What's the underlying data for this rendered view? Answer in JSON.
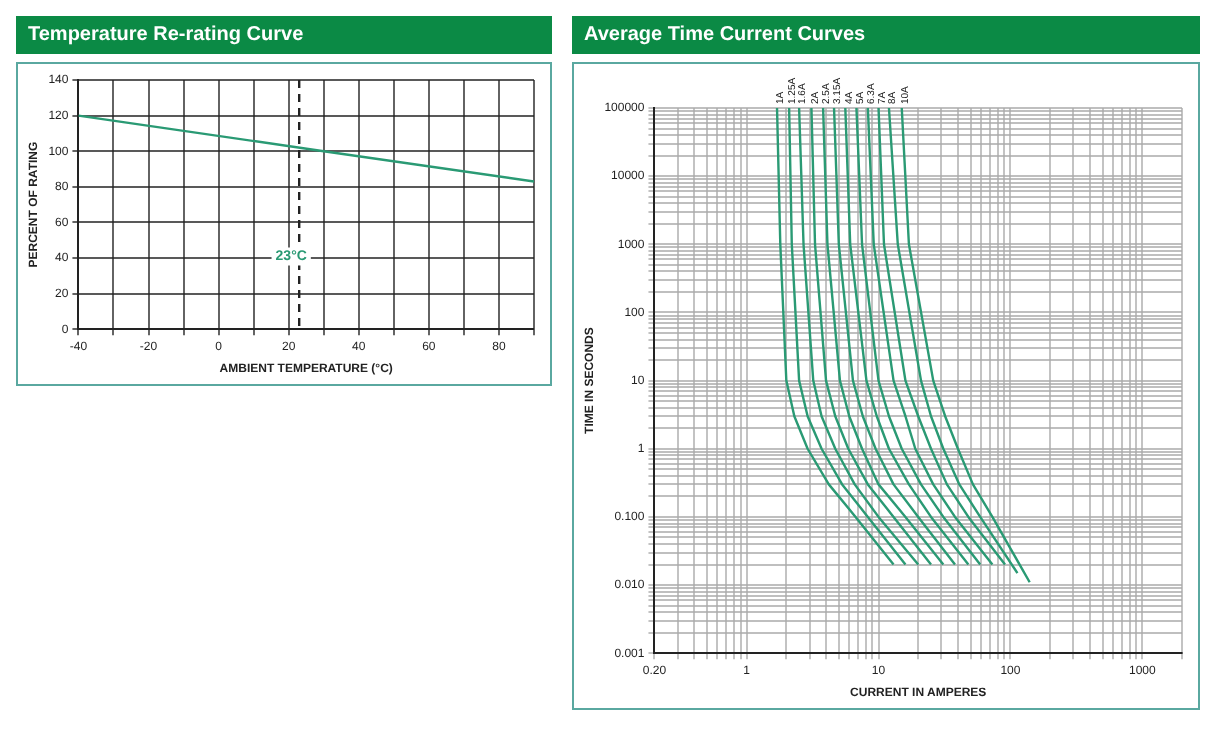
{
  "chart_data": [
    {
      "type": "line",
      "title": "Temperature Re-rating Curve",
      "xlabel": "AMBIENT TEMPERATURE (°C)",
      "ylabel": "PERCENT OF RATING",
      "x": [
        -40,
        30,
        90
      ],
      "values": [
        120,
        100,
        83
      ],
      "color": "#2a9a74",
      "marker": "none",
      "grid": true,
      "xlim": [
        -40,
        90
      ],
      "ylim": [
        0,
        140
      ],
      "xticks": [
        -40,
        {
          "value": -30,
          "label": null
        },
        -20,
        {
          "value": -10,
          "label": null
        },
        0,
        {
          "value": 10,
          "label": null
        },
        20,
        {
          "value": 30,
          "label": null
        },
        40,
        {
          "value": 50,
          "label": null
        },
        60,
        {
          "value": 70,
          "label": null
        },
        80,
        {
          "value": 90,
          "label": null
        }
      ],
      "yticks": [
        0,
        20,
        40,
        60,
        80,
        100,
        120,
        140
      ],
      "ref_lines": [
        {
          "axis": "x",
          "value": 23,
          "label": "23°C",
          "line_style": "dashed",
          "color": "#222222"
        }
      ]
    },
    {
      "type": "line",
      "title": "Average Time Current Curves",
      "xlabel": "CURRENT IN AMPERES",
      "ylabel": "TIME IN SECONDS",
      "log": "xy",
      "marker": "none",
      "grid": true,
      "xlim": [
        0.2,
        2000
      ],
      "ylim": [
        0.001,
        100000
      ],
      "xticks": [
        {
          "value": 0.2,
          "label": "0.20"
        },
        {
          "value": 0.3,
          "label": null
        },
        {
          "value": 0.4,
          "label": null
        },
        {
          "value": 0.5,
          "label": null
        },
        {
          "value": 0.6,
          "label": null
        },
        {
          "value": 0.7,
          "label": null
        },
        {
          "value": 0.8,
          "label": null
        },
        {
          "value": 0.9,
          "label": null
        },
        1,
        {
          "value": 2,
          "label": null
        },
        {
          "value": 3,
          "label": null
        },
        {
          "value": 4,
          "label": null
        },
        {
          "value": 5,
          "label": null
        },
        {
          "value": 6,
          "label": null
        },
        {
          "value": 7,
          "label": null
        },
        {
          "value": 8,
          "label": null
        },
        {
          "value": 9,
          "label": null
        },
        10,
        {
          "value": 20,
          "label": null
        },
        {
          "value": 30,
          "label": null
        },
        {
          "value": 40,
          "label": null
        },
        {
          "value": 50,
          "label": null
        },
        {
          "value": 60,
          "label": null
        },
        {
          "value": 70,
          "label": null
        },
        {
          "value": 80,
          "label": null
        },
        {
          "value": 90,
          "label": null
        },
        100,
        {
          "value": 200,
          "label": null
        },
        {
          "value": 300,
          "label": null
        },
        {
          "value": 400,
          "label": null
        },
        {
          "value": 500,
          "label": null
        },
        {
          "value": 600,
          "label": null
        },
        {
          "value": 700,
          "label": null
        },
        {
          "value": 800,
          "label": null
        },
        {
          "value": 900,
          "label": null
        },
        1000,
        {
          "value": 2000,
          "label": null
        }
      ],
      "yticks": [
        0.001,
        {
          "value": 0.002,
          "label": null
        },
        {
          "value": 0.003,
          "label": null
        },
        {
          "value": 0.004,
          "label": null
        },
        {
          "value": 0.005,
          "label": null
        },
        {
          "value": 0.006,
          "label": null
        },
        {
          "value": 0.007,
          "label": null
        },
        {
          "value": 0.008,
          "label": null
        },
        {
          "value": 0.009,
          "label": null
        },
        {
          "value": 0.01,
          "label": "0.010"
        },
        {
          "value": 0.02,
          "label": null
        },
        {
          "value": 0.03,
          "label": null
        },
        {
          "value": 0.04,
          "label": null
        },
        {
          "value": 0.05,
          "label": null
        },
        {
          "value": 0.06,
          "label": null
        },
        {
          "value": 0.07,
          "label": null
        },
        {
          "value": 0.08,
          "label": null
        },
        {
          "value": 0.09,
          "label": null
        },
        {
          "value": 0.1,
          "label": "0.100"
        },
        {
          "value": 0.2,
          "label": null
        },
        {
          "value": 0.3,
          "label": null
        },
        {
          "value": 0.4,
          "label": null
        },
        {
          "value": 0.5,
          "label": null
        },
        {
          "value": 0.6,
          "label": null
        },
        {
          "value": 0.7,
          "label": null
        },
        {
          "value": 0.8,
          "label": null
        },
        {
          "value": 0.9,
          "label": null
        },
        1,
        {
          "value": 2,
          "label": null
        },
        {
          "value": 3,
          "label": null
        },
        {
          "value": 4,
          "label": null
        },
        {
          "value": 5,
          "label": null
        },
        {
          "value": 6,
          "label": null
        },
        {
          "value": 7,
          "label": null
        },
        {
          "value": 8,
          "label": null
        },
        {
          "value": 9,
          "label": null
        },
        10,
        {
          "value": 20,
          "label": null
        },
        {
          "value": 30,
          "label": null
        },
        {
          "value": 40,
          "label": null
        },
        {
          "value": 50,
          "label": null
        },
        {
          "value": 60,
          "label": null
        },
        {
          "value": 70,
          "label": null
        },
        {
          "value": 80,
          "label": null
        },
        {
          "value": 90,
          "label": null
        },
        100,
        {
          "value": 200,
          "label": null
        },
        {
          "value": 300,
          "label": null
        },
        {
          "value": 400,
          "label": null
        },
        {
          "value": 500,
          "label": null
        },
        {
          "value": 600,
          "label": null
        },
        {
          "value": 700,
          "label": null
        },
        {
          "value": 800,
          "label": null
        },
        {
          "value": 900,
          "label": null
        },
        1000,
        {
          "value": 2000,
          "label": null
        },
        {
          "value": 3000,
          "label": null
        },
        {
          "value": 4000,
          "label": null
        },
        {
          "value": 5000,
          "label": null
        },
        {
          "value": 6000,
          "label": null
        },
        {
          "value": 7000,
          "label": null
        },
        {
          "value": 8000,
          "label": null
        },
        {
          "value": 9000,
          "label": null
        },
        10000,
        {
          "value": 20000,
          "label": null
        },
        {
          "value": 30000,
          "label": null
        },
        {
          "value": 40000,
          "label": null
        },
        {
          "value": 50000,
          "label": null
        },
        {
          "value": 60000,
          "label": null
        },
        {
          "value": 70000,
          "label": null
        },
        {
          "value": 80000,
          "label": null
        },
        {
          "value": 90000,
          "label": null
        },
        100000
      ],
      "series": [
        {
          "name": "1A",
          "color": "#2a9a74",
          "x": [
            1.7,
            1.8,
            2.0,
            2.3,
            2.9,
            4.2,
            6.7,
            13
          ],
          "values": [
            100000,
            1000,
            10,
            3,
            1,
            0.3,
            0.1,
            0.02
          ]
        },
        {
          "name": "1.25A",
          "color": "#2a9a74",
          "x": [
            2.1,
            2.2,
            2.5,
            2.9,
            3.7,
            5.3,
            8.3,
            16
          ],
          "values": [
            100000,
            1000,
            10,
            3,
            1,
            0.3,
            0.1,
            0.02
          ]
        },
        {
          "name": "1.6A",
          "color": "#2a9a74",
          "x": [
            2.5,
            2.7,
            3.2,
            3.7,
            4.7,
            6.6,
            10,
            20
          ],
          "values": [
            100000,
            1000,
            10,
            3,
            1,
            0.3,
            0.1,
            0.02
          ]
        },
        {
          "name": "2A",
          "color": "#2a9a74",
          "x": [
            3.1,
            3.3,
            4.0,
            4.7,
            5.9,
            8.3,
            13,
            25
          ],
          "values": [
            100000,
            1000,
            10,
            3,
            1,
            0.3,
            0.1,
            0.02
          ]
        },
        {
          "name": "2.5A",
          "color": "#2a9a74",
          "x": [
            3.8,
            4.1,
            5.1,
            6.0,
            7.5,
            10,
            16,
            31
          ],
          "values": [
            100000,
            1000,
            10,
            3,
            1,
            0.3,
            0.1,
            0.02
          ]
        },
        {
          "name": "3.15A",
          "color": "#2a9a74",
          "x": [
            4.6,
            5.0,
            6.4,
            7.6,
            9.5,
            13,
            20,
            38
          ],
          "values": [
            100000,
            1000,
            10,
            3,
            1,
            0.3,
            0.1,
            0.02
          ]
        },
        {
          "name": "4A",
          "color": "#2a9a74",
          "x": [
            5.6,
            6.1,
            8.1,
            9.7,
            12,
            17,
            25,
            48
          ],
          "values": [
            100000,
            1000,
            10,
            3,
            1,
            0.3,
            0.1,
            0.02
          ]
        },
        {
          "name": "5A",
          "color": "#2a9a74",
          "x": [
            6.8,
            7.5,
            10,
            12,
            15,
            21,
            31,
            59
          ],
          "values": [
            100000,
            1000,
            10,
            3,
            1,
            0.3,
            0.1,
            0.02
          ]
        },
        {
          "name": "6.3A",
          "color": "#2a9a74",
          "x": [
            8.3,
            9.2,
            13,
            16,
            19,
            26,
            38,
            73
          ],
          "values": [
            100000,
            1000,
            10,
            3,
            1,
            0.3,
            0.1,
            0.02
          ]
        },
        {
          "name": "7A",
          "color": "#2a9a74",
          "x": [
            10,
            11,
            16,
            20,
            25,
            33,
            48,
            91
          ],
          "values": [
            100000,
            1000,
            10,
            3,
            1,
            0.3,
            0.1,
            0.02
          ]
        },
        {
          "name": "8A",
          "color": "#2a9a74",
          "x": [
            12,
            14,
            21,
            25,
            31,
            41,
            59,
            113
          ],
          "values": [
            100000,
            1000,
            10,
            3,
            1,
            0.3,
            0.1,
            0.015
          ]
        },
        {
          "name": "10A",
          "color": "#2a9a74",
          "x": [
            15,
            17,
            26,
            32,
            40,
            52,
            73,
            140
          ],
          "values": [
            100000,
            1000,
            10,
            3,
            1,
            0.3,
            0.1,
            0.011
          ]
        }
      ]
    }
  ]
}
